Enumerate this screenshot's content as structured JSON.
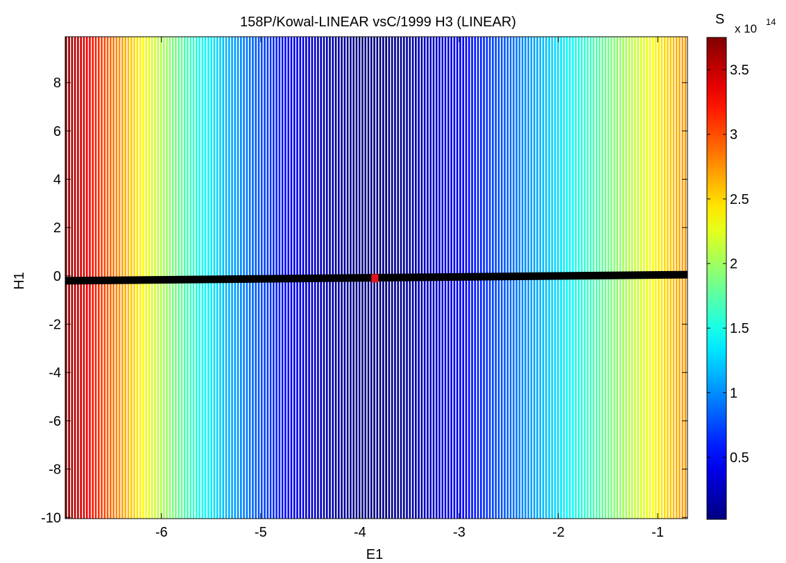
{
  "chart_data": {
    "type": "heatmap",
    "title": "158P/Kowal-LINEAR  vsC/1999 H3 (LINEAR)",
    "xlabel": "E1",
    "ylabel": "H1",
    "xlim": [
      -6.97,
      -0.7
    ],
    "ylim": [
      -10.05,
      9.9
    ],
    "xticks": [
      -6,
      -5,
      -4,
      -3,
      -2,
      -1
    ],
    "yticks": [
      8,
      6,
      4,
      2,
      0,
      -2,
      -4,
      -6,
      -8,
      -10
    ],
    "colorbar": {
      "label": "S",
      "exponent_label": "x 10",
      "exponent": "14",
      "colormap": "jet",
      "clim": [
        0.02,
        3.75
      ],
      "ticks": [
        0.5,
        1,
        1.5,
        2,
        2.5,
        3,
        3.5
      ]
    },
    "field": {
      "description_of_value": "S as a function of E1 only (vertical contour bands)",
      "min_at_e1": -3.85,
      "s_min": 0.02,
      "s_at_left_edge": 3.75,
      "s_at_right_edge": 2.75
    },
    "line_series": {
      "name": "",
      "color": "#000000",
      "x": [
        -6.97,
        -0.7
      ],
      "y": [
        -0.2,
        0.05
      ]
    },
    "marker": {
      "x": -3.85,
      "y": -0.1,
      "color": "#e0141e"
    }
  }
}
